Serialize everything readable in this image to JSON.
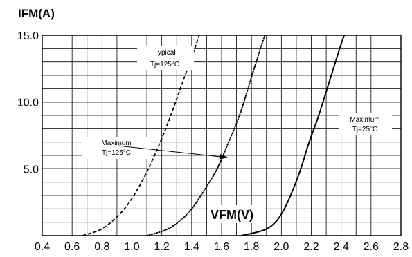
{
  "chart_data": {
    "type": "line",
    "ylabel": "IFM(A)",
    "xlabel": "VFM(V)",
    "xlim": [
      0.4,
      2.8
    ],
    "ylim": [
      0,
      15.0
    ],
    "x_ticks": [
      "0.4",
      "0.6",
      "0.8",
      "1.0",
      "1.2",
      "1.4",
      "1.6",
      "1.8",
      "2.0",
      "2.2",
      "2.4",
      "2.6",
      "2.8"
    ],
    "y_ticks": [
      "5.0",
      "10.0",
      "15.0"
    ],
    "grid": true,
    "series": [
      {
        "name": "Typical Tj=125°C",
        "style": "dashed",
        "points": [
          [
            0.67,
            0
          ],
          [
            0.78,
            0.4
          ],
          [
            0.86,
            1.0
          ],
          [
            0.95,
            2.0
          ],
          [
            1.04,
            3.5
          ],
          [
            1.11,
            5.0
          ],
          [
            1.19,
            7.0
          ],
          [
            1.26,
            9.0
          ],
          [
            1.34,
            11.5
          ],
          [
            1.42,
            14.0
          ],
          [
            1.45,
            15.0
          ]
        ]
      },
      {
        "name": "Maximum Tj=125°C",
        "style": "dotted",
        "points": [
          [
            1.1,
            0
          ],
          [
            1.22,
            0.4
          ],
          [
            1.31,
            1.0
          ],
          [
            1.4,
            2.0
          ],
          [
            1.49,
            3.5
          ],
          [
            1.57,
            5.0
          ],
          [
            1.64,
            6.8
          ],
          [
            1.72,
            9.0
          ],
          [
            1.79,
            11.5
          ],
          [
            1.86,
            14.0
          ],
          [
            1.89,
            15.0
          ]
        ]
      },
      {
        "name": "Maximum Tj=25°C",
        "style": "solid",
        "points": [
          [
            1.73,
            0
          ],
          [
            1.88,
            0.4
          ],
          [
            1.96,
            1.0
          ],
          [
            2.02,
            2.0
          ],
          [
            2.08,
            3.5
          ],
          [
            2.13,
            5.0
          ],
          [
            2.18,
            6.8
          ],
          [
            2.25,
            9.0
          ],
          [
            2.32,
            11.5
          ],
          [
            2.39,
            14.0
          ],
          [
            2.42,
            15.0
          ]
        ]
      }
    ],
    "annotations": [
      {
        "id": "typ125",
        "lines": [
          "Typical",
          "Tj=125°C"
        ]
      },
      {
        "id": "max125",
        "lines": [
          "Maximum",
          "Tj=125°C"
        ]
      },
      {
        "id": "max25",
        "lines": [
          "Maximum",
          "Tj=25°C"
        ]
      }
    ]
  }
}
